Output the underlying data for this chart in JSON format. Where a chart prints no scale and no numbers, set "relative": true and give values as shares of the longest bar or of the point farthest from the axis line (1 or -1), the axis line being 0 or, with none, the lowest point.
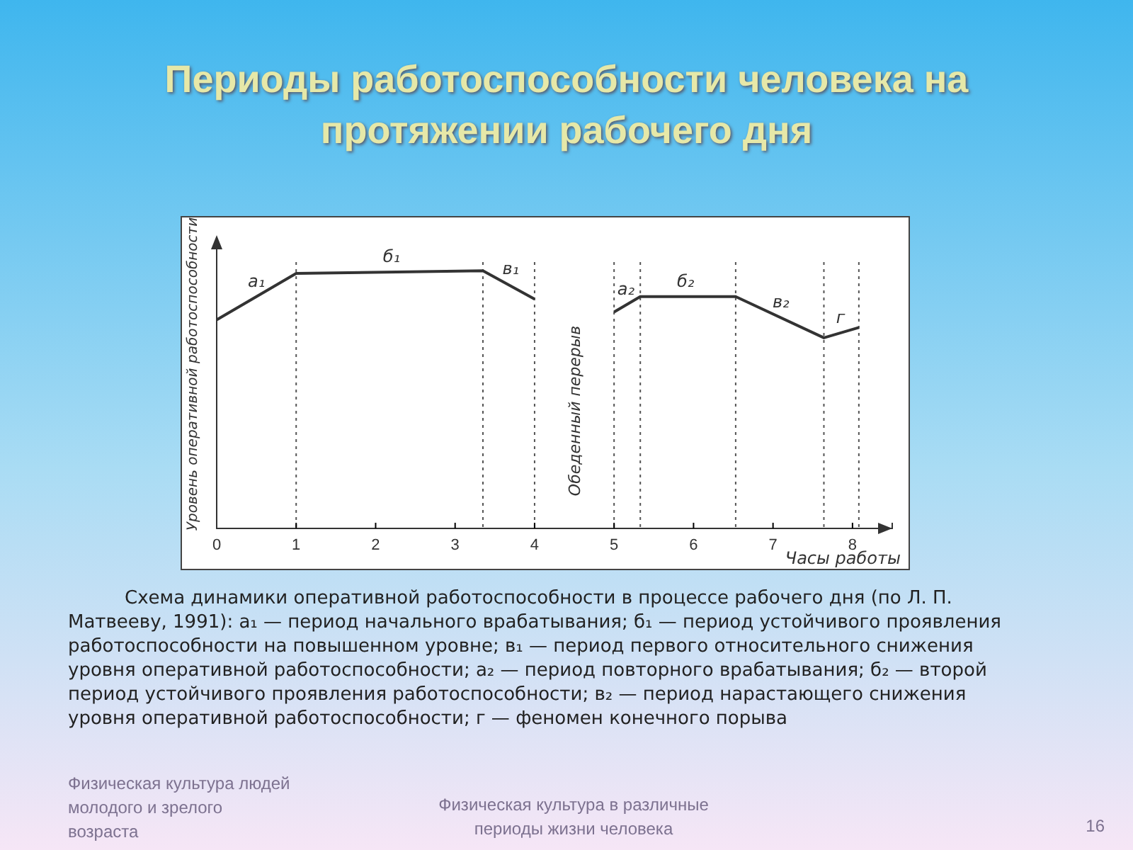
{
  "chart_data": {
    "type": "line",
    "title": "Периоды работоспособности человека на протяжении рабочего дня",
    "xlabel": "Часы работы",
    "ylabel": "Уровень оперативной работоспособности",
    "relative": true,
    "xlim": [
      0,
      8.5
    ],
    "xticks": [
      0,
      1,
      2,
      3,
      4,
      5,
      6,
      7,
      8
    ],
    "series": [
      {
        "color": "#333333",
        "x": [
          0,
          1,
          3.35,
          4,
          4.5,
          5,
          5.33,
          6.53,
          7.64,
          8.08
        ],
        "values": [
          0.81,
          0.99,
          1,
          0.89,
          null,
          0.84,
          0.9,
          0.9,
          0.74,
          0.78
        ]
      }
    ],
    "ref_lines": [
      {
        "axis": "x",
        "value": 1,
        "line_style": "dotted"
      },
      {
        "axis": "x",
        "value": 3.35,
        "line_style": "dotted"
      },
      {
        "axis": "x",
        "value": 4,
        "line_style": "dotted"
      },
      {
        "axis": "x",
        "value": 5,
        "line_style": "dotted"
      },
      {
        "axis": "x",
        "value": 5.33,
        "line_style": "dotted"
      },
      {
        "axis": "x",
        "value": 6.53,
        "line_style": "dotted"
      },
      {
        "axis": "x",
        "value": 7.64,
        "line_style": "dotted"
      },
      {
        "axis": "x",
        "value": 8.08,
        "line_style": "dotted"
      }
    ],
    "annotations": [
      "Обеденный перерыв",
      {
        "text": "а₁",
        "x": 0.5,
        "y": 0.9
      },
      {
        "text": "б₁",
        "x": 2.2,
        "y": 0.995
      },
      {
        "text": "в₁",
        "x": 3.7,
        "y": 0.95
      },
      {
        "text": "а₂",
        "x": 5.15,
        "y": 0.87
      },
      {
        "text": "б₂",
        "x": 5.9,
        "y": 0.9
      },
      {
        "text": "в₂",
        "x": 7.1,
        "y": 0.82
      },
      {
        "text": "г",
        "x": 7.85,
        "y": 0.76
      },
      "Схема динамики оперативной работоспособности в процессе рабочего дня (по Л. П. Матвееву, 1991): а₁ — период начального врабатывания; б₁ — период устойчивого проявления работоспособности на повышенном уровне; в₁ — период первого относительного снижения уровня оперативной работоспособности; а₂ — период повторного врабатывания; б₂ — второй период устойчивого проявления работоспособности; в₂ — период нарастающего снижения уровня оперативной работоспособности; г — феномен конечного порыва",
      "Физическая культура людей молодого и зрелого возраста",
      "Физическая культура в различные периоды жизни человека",
      "16"
    ],
    "marker": "none",
    "line_style": "solid"
  }
}
